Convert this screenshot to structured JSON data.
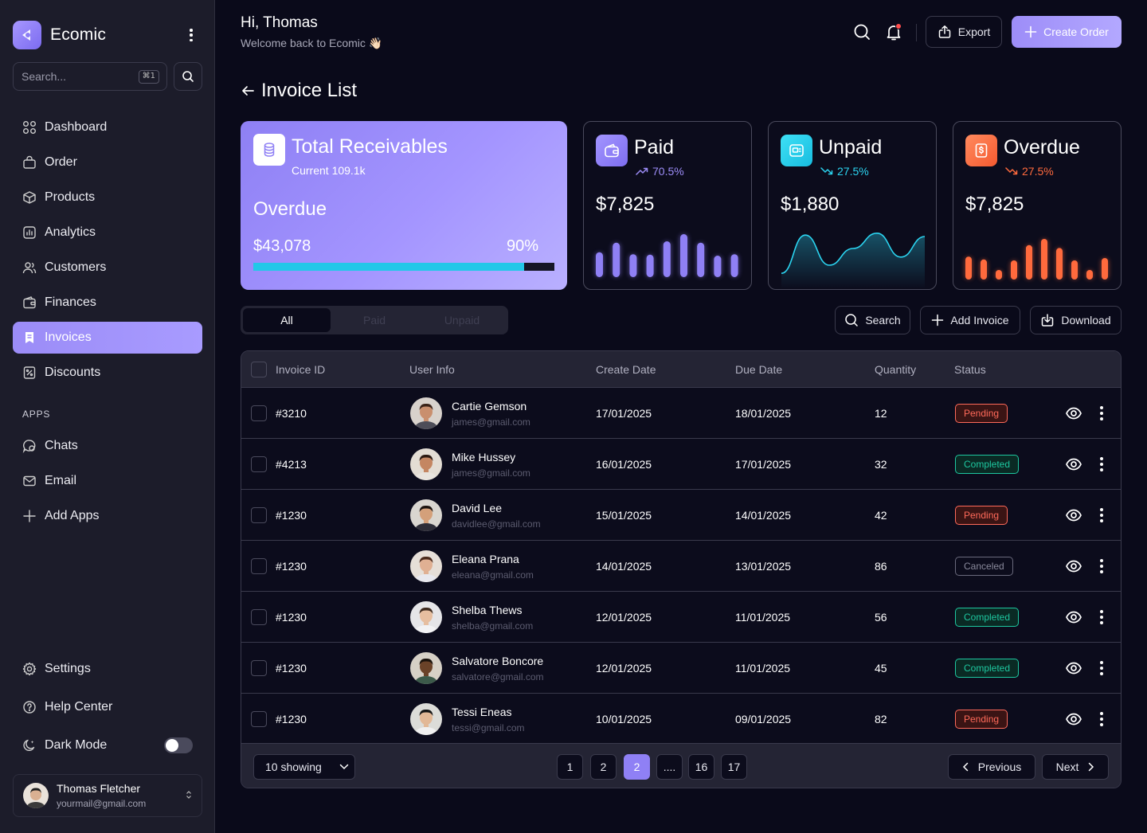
{
  "brand": {
    "name": "Ecomic"
  },
  "sidebar": {
    "search_placeholder": "Search...",
    "search_shortcut": "⌘1",
    "nav": [
      {
        "label": "Dashboard",
        "icon": "grid-icon"
      },
      {
        "label": "Order",
        "icon": "bag-icon"
      },
      {
        "label": "Products",
        "icon": "box-icon"
      },
      {
        "label": "Analytics",
        "icon": "chart-icon"
      },
      {
        "label": "Customers",
        "icon": "users-icon"
      },
      {
        "label": "Finances",
        "icon": "wallet-icon"
      },
      {
        "label": "Invoices",
        "icon": "bookmark-icon",
        "active": true
      },
      {
        "label": "Discounts",
        "icon": "discount-icon"
      }
    ],
    "apps_label": "APPS",
    "apps": [
      {
        "label": "Chats",
        "icon": "chat-icon"
      },
      {
        "label": "Email",
        "icon": "mail-icon"
      },
      {
        "label": "Add Apps",
        "icon": "plus-icon"
      }
    ],
    "bottom": [
      {
        "label": "Settings",
        "icon": "gear-icon"
      },
      {
        "label": "Help Center",
        "icon": "help-icon"
      },
      {
        "label": "Dark Mode",
        "icon": "moon-icon"
      }
    ],
    "dark_mode_on": false,
    "user": {
      "name": "Thomas Fletcher",
      "email": "yourmail@gmail.com"
    }
  },
  "header": {
    "greeting": "Hi, Thomas",
    "subtitle": "Welcome back to Ecomic 👋🏻",
    "export_label": "Export",
    "create_label": "Create Order"
  },
  "page": {
    "title": "Invoice List"
  },
  "cards": {
    "total": {
      "title": "Total Receivables",
      "sub": "Current 109.1k",
      "overdue_label": "Overdue",
      "amount": "$43,078",
      "percent": "90%",
      "progress": 0.9
    },
    "paid": {
      "title": "Paid",
      "trend": "70.5%",
      "value": "$7,825",
      "bars": [
        0.52,
        0.72,
        0.48,
        0.47,
        0.75,
        0.9,
        0.72,
        0.45,
        0.48
      ]
    },
    "unpaid": {
      "title": "Unpaid",
      "trend": "27.5%",
      "value": "$1,880",
      "line": [
        0.08,
        0.88,
        0.25,
        0.6,
        0.92,
        0.42,
        0.85
      ]
    },
    "overdue": {
      "title": "Overdue",
      "trend": "27.5%",
      "value": "$7,825",
      "bars": [
        0.48,
        0.42,
        0.2,
        0.4,
        0.72,
        0.85,
        0.66,
        0.4,
        0.2,
        0.45
      ]
    }
  },
  "colors": {
    "accent": "#9d8df8",
    "paid": "#8f80f5",
    "unpaid": "#2bd4f0",
    "overdue": "#ff6a3d",
    "pending": "#ff6a5a",
    "completed": "#1ec8a0"
  },
  "filters": {
    "tabs": [
      "All",
      "Paid",
      "Unpaid"
    ],
    "active": 0
  },
  "actions": {
    "search": "Search",
    "add": "Add Invoice",
    "download": "Download"
  },
  "table": {
    "headers": [
      "Invoice ID",
      "User Info",
      "Create Date",
      "Due Date",
      "Quantity",
      "Status"
    ],
    "rows": [
      {
        "id": "#3210",
        "name": "Cartie Gemson",
        "email": "james@gmail.com",
        "created": "17/01/2025",
        "due": "18/01/2025",
        "qty": "12",
        "status": "Pending"
      },
      {
        "id": "#4213",
        "name": "Mike Hussey",
        "email": "james@gmail.com",
        "created": "16/01/2025",
        "due": "17/01/2025",
        "qty": "32",
        "status": "Completed"
      },
      {
        "id": "#1230",
        "name": "David Lee",
        "email": "davidlee@gmail.com",
        "created": "15/01/2025",
        "due": "14/01/2025",
        "qty": "42",
        "status": "Pending"
      },
      {
        "id": "#1230",
        "name": "Eleana Prana",
        "email": "eleana@gmail.com",
        "created": "14/01/2025",
        "due": "13/01/2025",
        "qty": "86",
        "status": "Canceled"
      },
      {
        "id": "#1230",
        "name": "Shelba Thews",
        "email": "shelba@gmail.com",
        "created": "12/01/2025",
        "due": "11/01/2025",
        "qty": "56",
        "status": "Completed"
      },
      {
        "id": "#1230",
        "name": "Salvatore Boncore",
        "email": "salvatore@gmail.com",
        "created": "12/01/2025",
        "due": "11/01/2025",
        "qty": "45",
        "status": "Completed"
      },
      {
        "id": "#1230",
        "name": "Tessi Eneas",
        "email": "tessi@gmail.com",
        "created": "10/01/2025",
        "due": "09/01/2025",
        "qty": "82",
        "status": "Pending"
      }
    ]
  },
  "pagination": {
    "showing": "10 showing",
    "pages": [
      "1",
      "2",
      "2",
      "....",
      "16",
      "17"
    ],
    "prev": "Previous",
    "next": "Next"
  }
}
